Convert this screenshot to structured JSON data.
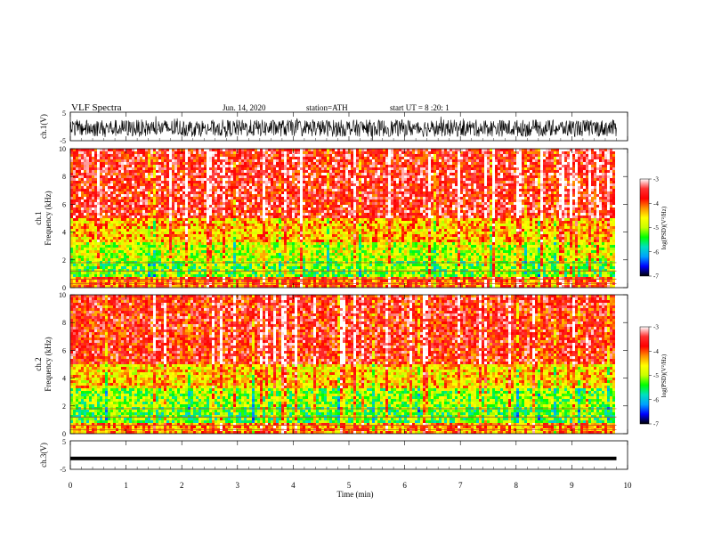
{
  "header": {
    "title": "VLF  Spectra",
    "date": "Jun. 14, 2020",
    "station": "station=ATH",
    "start_ut": "start  UT  =   8  :20: 1"
  },
  "colorbar": {
    "label": "log(PSD)(V²/Hz)",
    "ticks": [
      "-3",
      "-4",
      "-5",
      "-6",
      "-7"
    ],
    "stops": [
      "#000000",
      "#0000ff",
      "#00a0ff",
      "#00e0c0",
      "#00ff00",
      "#c8ff00",
      "#ffff00",
      "#ff9000",
      "#ff0000",
      "#ff3030",
      "#ffffff"
    ]
  },
  "chart_data": [
    {
      "type": "line",
      "name": "ch1-waveform",
      "ylabel": "ch.1(V)",
      "ylim": [
        -5,
        5
      ],
      "yticks": [
        "5",
        "-5"
      ],
      "xlim": [
        0,
        10
      ],
      "description_values": "dense noise waveform with amplitude about ±3 V across 0–9.8 min"
    },
    {
      "type": "heatmap",
      "name": "ch1-spectrogram",
      "ylabel_top": "ch.1",
      "ylabel": "Frequency  (kHz)",
      "ylim": [
        0,
        10
      ],
      "yticks": [
        "0",
        "2",
        "4",
        "6",
        "8",
        "10"
      ],
      "xlim": [
        0,
        9.8
      ],
      "zlim": [
        -7,
        -3
      ],
      "bands_khz": [
        [
          0,
          0.8,
          -4.0
        ],
        [
          0.8,
          2.0,
          -5.2
        ],
        [
          2.0,
          3.3,
          -4.9
        ],
        [
          3.3,
          5.0,
          -4.4
        ],
        [
          5.0,
          10.0,
          -3.6
        ]
      ]
    },
    {
      "type": "heatmap",
      "name": "ch2-spectrogram",
      "ylabel_top": "ch.2",
      "ylabel": "Frequency  (kHz)",
      "ylim": [
        0,
        10
      ],
      "yticks": [
        "0",
        "2",
        "4",
        "6",
        "8",
        "10"
      ],
      "xlim": [
        0,
        9.8
      ],
      "zlim": [
        -7,
        -3
      ],
      "bands_khz": [
        [
          0,
          0.8,
          -4.2
        ],
        [
          0.8,
          2.0,
          -5.3
        ],
        [
          2.0,
          3.3,
          -5.1
        ],
        [
          3.3,
          5.0,
          -4.5
        ],
        [
          5.0,
          10.0,
          -3.7
        ]
      ]
    },
    {
      "type": "line",
      "name": "ch3-waveform",
      "ylabel": "ch.3(V)",
      "ylim": [
        -5,
        5
      ],
      "yticks": [
        "5",
        "-5"
      ],
      "xlim": [
        0,
        10
      ],
      "xlabel": "Time  (min)",
      "xticks": [
        "0",
        "1",
        "2",
        "3",
        "4",
        "5",
        "6",
        "7",
        "8",
        "9",
        "10"
      ],
      "level": -1.2
    }
  ]
}
